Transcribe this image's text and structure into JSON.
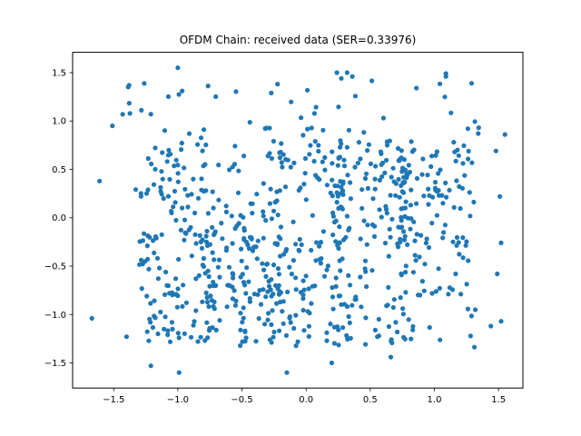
{
  "chart_data": {
    "type": "scatter",
    "title": "OFDM Chain: received data (SER=0.33976)",
    "xlabel": "",
    "ylabel": "",
    "xlim": [
      -1.82,
      1.69
    ],
    "ylim": [
      -1.76,
      1.71
    ],
    "x_ticks": [
      -1.5,
      -1.0,
      -0.5,
      0.0,
      0.5,
      1.0,
      1.5
    ],
    "x_tick_labels": [
      "−1.5",
      "−1.0",
      "−0.5",
      "0.0",
      "0.5",
      "1.0",
      "1.5"
    ],
    "y_ticks": [
      -1.5,
      -1.0,
      -0.5,
      0.0,
      0.5,
      1.0,
      1.5
    ],
    "y_tick_labels": [
      "−1.5",
      "−1.0",
      "−0.5",
      "0.0",
      "0.5",
      "1.0",
      "1.5"
    ],
    "grid": false,
    "marker_color": "#1f77b4",
    "point_count": 800,
    "x_range_observed": [
      -1.67,
      1.55
    ],
    "y_range_observed": [
      -1.6,
      1.55
    ],
    "point_samples": [
      {
        "x": -1.67,
        "y": -1.04
      },
      {
        "x": -1.61,
        "y": 0.38
      },
      {
        "x": -1.51,
        "y": 0.95
      },
      {
        "x": -1.43,
        "y": 1.07
      },
      {
        "x": -1.4,
        "y": -1.23
      },
      {
        "x": -1.38,
        "y": 1.37
      },
      {
        "x": -1.21,
        "y": -1.53
      },
      {
        "x": -1.0,
        "y": 1.55
      },
      {
        "x": -0.99,
        "y": -1.6
      },
      {
        "x": -0.15,
        "y": -1.6
      },
      {
        "x": 0.24,
        "y": 1.5
      },
      {
        "x": 0.32,
        "y": 1.5
      },
      {
        "x": 0.36,
        "y": 1.46
      },
      {
        "x": 0.86,
        "y": 1.34
      },
      {
        "x": 1.09,
        "y": 1.49
      },
      {
        "x": 1.09,
        "y": 1.46
      },
      {
        "x": 1.29,
        "y": 1.39
      },
      {
        "x": 1.48,
        "y": 0.69
      },
      {
        "x": 1.55,
        "y": 0.86
      },
      {
        "x": 1.51,
        "y": 0.22
      },
      {
        "x": 1.52,
        "y": -0.26
      },
      {
        "x": 1.49,
        "y": -0.58
      },
      {
        "x": 1.44,
        "y": -1.12
      },
      {
        "x": 1.52,
        "y": -1.07
      },
      {
        "x": 0.66,
        "y": -1.44
      },
      {
        "x": 0.2,
        "y": -1.5
      }
    ]
  }
}
